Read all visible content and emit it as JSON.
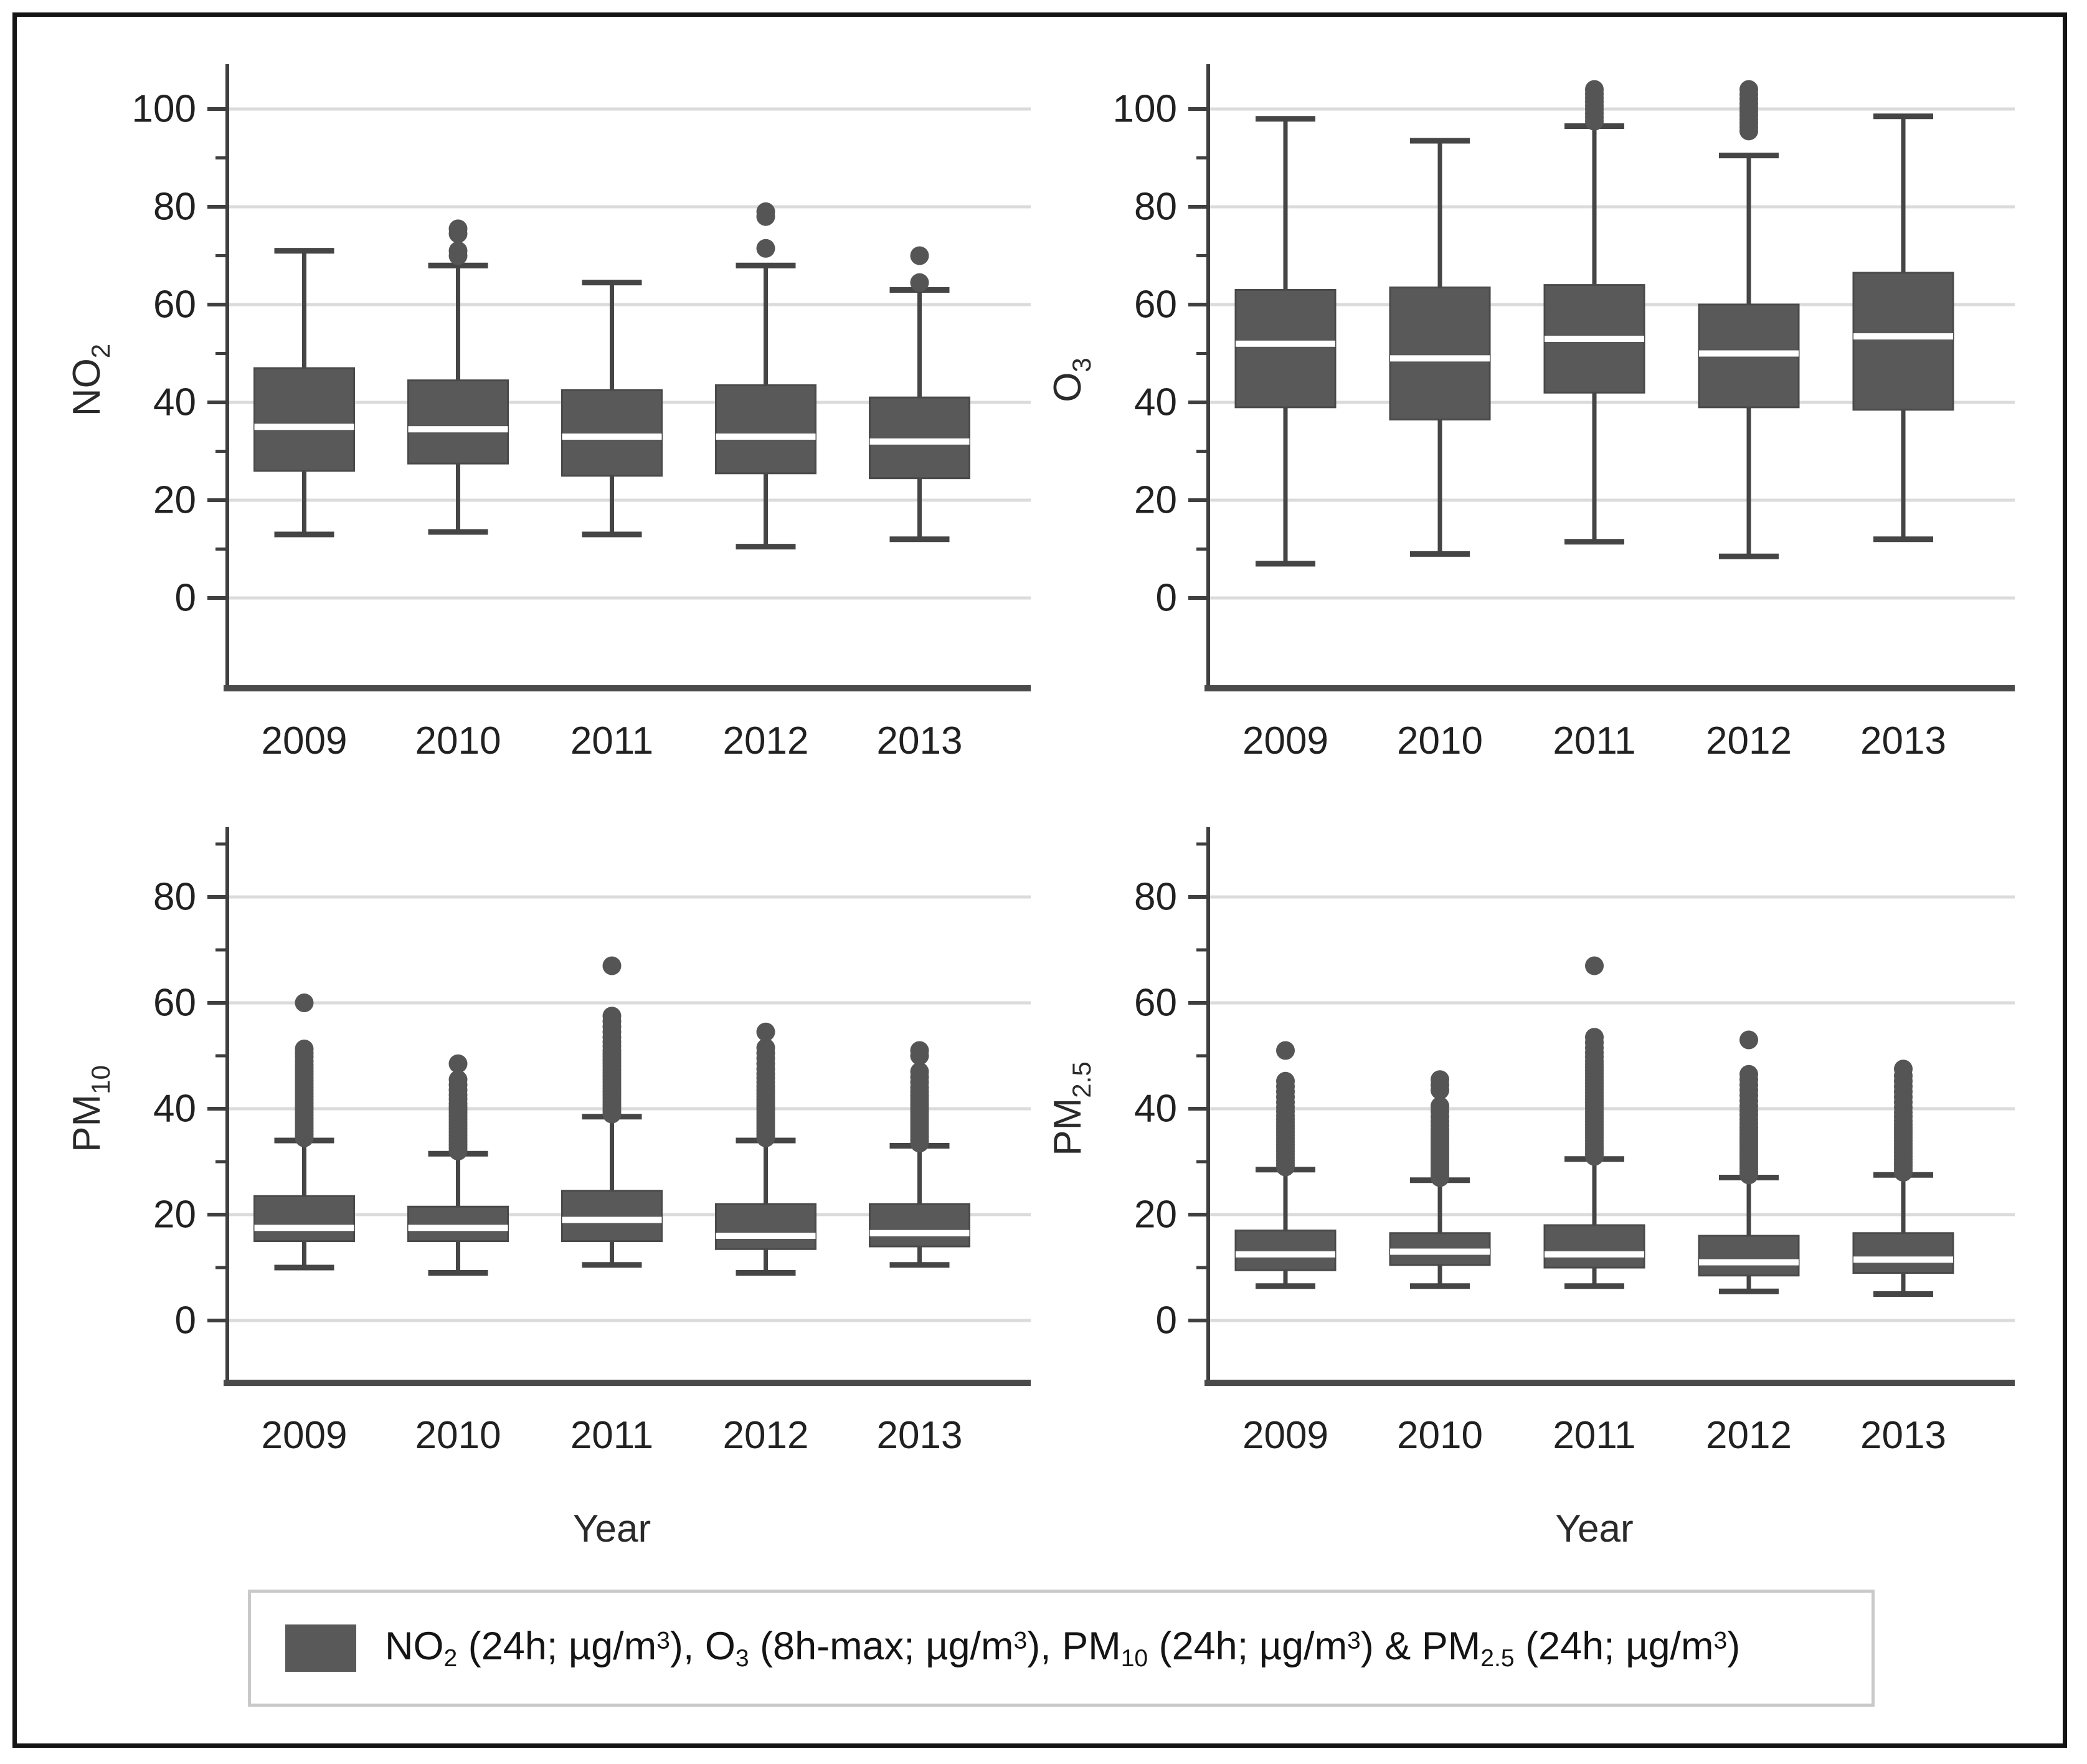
{
  "style": {
    "box_fill": "#595959",
    "box_stroke": "#4a4a4a",
    "whisker_color": "#454545",
    "axis_color": "#3f3f3f",
    "grid_color": "#dbdbdb",
    "median_color": "#ffffff",
    "tick_label_color": "#212121",
    "outlier_color": "#555555",
    "frame_color": "#141414",
    "legend_border": "#c9c9c9",
    "background": "#ffffff"
  },
  "legend": {
    "swatch_color": "#595959",
    "segments": [
      {
        "t": "NO"
      },
      {
        "sub": "2"
      },
      {
        "t": " (24h; µg/m"
      },
      {
        "sup": "3"
      },
      {
        "t": "), O"
      },
      {
        "sub": "3"
      },
      {
        "t": " (8h-max; µg/m"
      },
      {
        "sup": "3"
      },
      {
        "t": "), PM"
      },
      {
        "sub": "10"
      },
      {
        "t": " (24h; µg/m"
      },
      {
        "sup": "3"
      },
      {
        "t": ") & PM"
      },
      {
        "sub": "2.5"
      },
      {
        "t": " (24h; µg/m"
      },
      {
        "sup": "3"
      },
      {
        "t": ")"
      }
    ]
  },
  "chart_data": [
    {
      "type": "box",
      "id": "no2",
      "title": "",
      "xlabel": "",
      "ylabel_segments": [
        {
          "t": "NO"
        },
        {
          "sub": "2"
        }
      ],
      "categories": [
        "2009",
        "2010",
        "2011",
        "2012",
        "2013"
      ],
      "yticks": [
        0,
        20,
        40,
        60,
        80,
        100
      ],
      "minor_yticks": [
        10,
        30,
        50,
        70,
        90
      ],
      "ylim": [
        0,
        100
      ],
      "grid": true,
      "legend_position": "bottom-shared",
      "boxes": [
        {
          "low": 13,
          "q1": 26,
          "median": 35,
          "q3": 47,
          "high": 71,
          "outliers": []
        },
        {
          "low": 13.5,
          "q1": 27.5,
          "median": 34.5,
          "q3": 44.5,
          "high": 68,
          "outliers": [
            70,
            71,
            74.5,
            75.5
          ]
        },
        {
          "low": 13,
          "q1": 25,
          "median": 33,
          "q3": 42.5,
          "high": 64.5,
          "outliers": []
        },
        {
          "low": 10.5,
          "q1": 25.5,
          "median": 33,
          "q3": 43.5,
          "high": 68,
          "outliers": [
            71.5,
            78,
            79
          ]
        },
        {
          "low": 12,
          "q1": 24.5,
          "median": 32,
          "q3": 41,
          "high": 63,
          "outliers": [
            64.5,
            70
          ]
        }
      ]
    },
    {
      "type": "box",
      "id": "o3",
      "title": "",
      "xlabel": "",
      "ylabel_segments": [
        {
          "t": "O"
        },
        {
          "sub": "3"
        }
      ],
      "categories": [
        "2009",
        "2010",
        "2011",
        "2012",
        "2013"
      ],
      "yticks": [
        0,
        20,
        40,
        60,
        80,
        100
      ],
      "minor_yticks": [
        10,
        30,
        50,
        70,
        90
      ],
      "ylim": [
        0,
        100
      ],
      "grid": true,
      "legend_position": "bottom-shared",
      "boxes": [
        {
          "low": 7,
          "q1": 39,
          "median": 52,
          "q3": 63,
          "high": 98,
          "outliers": []
        },
        {
          "low": 9,
          "q1": 36.5,
          "median": 49,
          "q3": 63.5,
          "high": 93.5,
          "outliers": []
        },
        {
          "low": 11.5,
          "q1": 42,
          "median": 53,
          "q3": 64,
          "high": 96.5,
          "outliers": [
            97.5,
            98.3,
            99.1,
            99.9,
            100.7,
            101.5,
            102.3,
            103.1,
            104
          ]
        },
        {
          "low": 8.5,
          "q1": 39,
          "median": 50,
          "q3": 60,
          "high": 90.5,
          "outliers": [
            95.5,
            96.3,
            97.1,
            97.9,
            98.7,
            99.5,
            100.3,
            101.1,
            102,
            103,
            104
          ]
        },
        {
          "low": 12,
          "q1": 38.5,
          "median": 53.5,
          "q3": 66.5,
          "high": 98.5,
          "outliers": []
        }
      ]
    },
    {
      "type": "box",
      "id": "pm10",
      "title": "",
      "xlabel": "Year",
      "ylabel_segments": [
        {
          "t": "PM"
        },
        {
          "sub": "10"
        }
      ],
      "categories": [
        "2009",
        "2010",
        "2011",
        "2012",
        "2013"
      ],
      "yticks": [
        0,
        20,
        40,
        60,
        80
      ],
      "minor_yticks": [
        10,
        30,
        50,
        70,
        90
      ],
      "ylim": [
        0,
        80
      ],
      "grid": true,
      "legend_position": "bottom-shared",
      "boxes": [
        {
          "low": 10,
          "q1": 15,
          "median": 17.5,
          "q3": 23.5,
          "high": 34,
          "outliers": [
            34.5,
            35.1,
            35.7,
            36.3,
            36.9,
            37.5,
            38.1,
            38.7,
            39.3,
            39.9,
            40.5,
            41.1,
            41.7,
            42.3,
            42.9,
            43.5,
            44.1,
            44.7,
            45.3,
            45.9,
            46.5,
            47.1,
            47.7,
            48.3,
            49,
            49.8,
            50.5,
            51.3,
            60
          ]
        },
        {
          "low": 9,
          "q1": 15,
          "median": 17.5,
          "q3": 21.5,
          "high": 31.5,
          "outliers": [
            32,
            32.6,
            33.2,
            33.8,
            34.4,
            35,
            35.6,
            36.2,
            36.8,
            37.4,
            38,
            38.6,
            39.2,
            39.8,
            40.4,
            41,
            41.8,
            42.6,
            43.5,
            44.5,
            45.5,
            48.5
          ]
        },
        {
          "low": 10.5,
          "q1": 15,
          "median": 19,
          "q3": 24.5,
          "high": 38.5,
          "outliers": [
            39,
            39.6,
            40.2,
            40.8,
            41.4,
            42,
            42.6,
            43.2,
            43.8,
            44.4,
            45,
            45.6,
            46.2,
            46.8,
            47.4,
            48,
            48.6,
            49.2,
            49.8,
            50.4,
            51,
            51.8,
            52.6,
            53.5,
            54.5,
            55.5,
            56.5,
            57.5,
            67
          ]
        },
        {
          "low": 9,
          "q1": 13.5,
          "median": 16,
          "q3": 22,
          "high": 34,
          "outliers": [
            34.5,
            35.1,
            35.7,
            36.3,
            36.9,
            37.5,
            38.1,
            38.7,
            39.3,
            39.9,
            40.5,
            41.1,
            41.7,
            42.3,
            42.9,
            43.5,
            44.2,
            45,
            45.8,
            46.6,
            47.5,
            48.5,
            49.5,
            50.5,
            51.5,
            54.5
          ]
        },
        {
          "low": 10.5,
          "q1": 14,
          "median": 16.5,
          "q3": 22,
          "high": 33,
          "outliers": [
            33.5,
            34.1,
            34.7,
            35.3,
            35.9,
            36.5,
            37.1,
            37.7,
            38.3,
            38.9,
            39.5,
            40.1,
            40.7,
            41.3,
            41.9,
            42.5,
            43.2,
            44,
            45,
            46,
            47,
            50,
            51
          ]
        }
      ]
    },
    {
      "type": "box",
      "id": "pm25",
      "title": "",
      "xlabel": "Year",
      "ylabel_segments": [
        {
          "t": "PM"
        },
        {
          "sub": "2.5"
        }
      ],
      "categories": [
        "2009",
        "2010",
        "2011",
        "2012",
        "2013"
      ],
      "yticks": [
        0,
        20,
        40,
        60,
        80
      ],
      "minor_yticks": [
        10,
        30,
        50,
        70,
        90
      ],
      "ylim": [
        0,
        80
      ],
      "grid": true,
      "legend_position": "bottom-shared",
      "boxes": [
        {
          "low": 6.5,
          "q1": 9.5,
          "median": 12.5,
          "q3": 17,
          "high": 28.5,
          "outliers": [
            29,
            29.6,
            30.2,
            30.8,
            31.4,
            32,
            32.6,
            33.2,
            33.8,
            34.4,
            35,
            35.6,
            36.2,
            36.8,
            37.4,
            38,
            38.7,
            39.5,
            40.3,
            41.2,
            42.2,
            43.2,
            44.2,
            45.2,
            51
          ]
        },
        {
          "low": 6.5,
          "q1": 10.5,
          "median": 13,
          "q3": 16.5,
          "high": 26.5,
          "outliers": [
            27,
            27.6,
            28.2,
            28.8,
            29.4,
            30,
            30.6,
            31.2,
            31.8,
            32.4,
            33,
            33.6,
            34.2,
            34.8,
            35.4,
            36,
            36.8,
            37.6,
            38.5,
            39.5,
            40.5,
            43.5,
            44.5,
            45.5
          ]
        },
        {
          "low": 6.5,
          "q1": 10,
          "median": 12.5,
          "q3": 18,
          "high": 30.5,
          "outliers": [
            31,
            31.6,
            32.2,
            32.8,
            33.4,
            34,
            34.6,
            35.2,
            35.8,
            36.4,
            37,
            37.6,
            38.2,
            38.8,
            39.4,
            40,
            40.6,
            41.2,
            41.8,
            42.4,
            43,
            43.6,
            44.2,
            44.8,
            45.4,
            46,
            46.6,
            47.2,
            47.8,
            48.4,
            49,
            49.8,
            50.6,
            51.5,
            52.5,
            53.5,
            67
          ]
        },
        {
          "low": 5.5,
          "q1": 8.5,
          "median": 11,
          "q3": 16,
          "high": 27,
          "outliers": [
            27.5,
            28.1,
            28.7,
            29.3,
            29.9,
            30.5,
            31.1,
            31.7,
            32.3,
            32.9,
            33.5,
            34.1,
            34.7,
            35.3,
            35.9,
            36.5,
            37.2,
            38,
            38.8,
            39.6,
            40.5,
            41.5,
            42.5,
            43.5,
            44.5,
            45.5,
            46.5,
            53
          ]
        },
        {
          "low": 5,
          "q1": 9,
          "median": 11.5,
          "q3": 16.5,
          "high": 27.5,
          "outliers": [
            28,
            28.6,
            29.2,
            29.8,
            30.4,
            31,
            31.6,
            32.2,
            32.8,
            33.4,
            34,
            34.6,
            35.2,
            35.8,
            36.4,
            37,
            37.7,
            38.5,
            39.3,
            40.2,
            41.2,
            42.2,
            43.2,
            44.2,
            45.2,
            46.2,
            47.5
          ]
        }
      ]
    }
  ]
}
